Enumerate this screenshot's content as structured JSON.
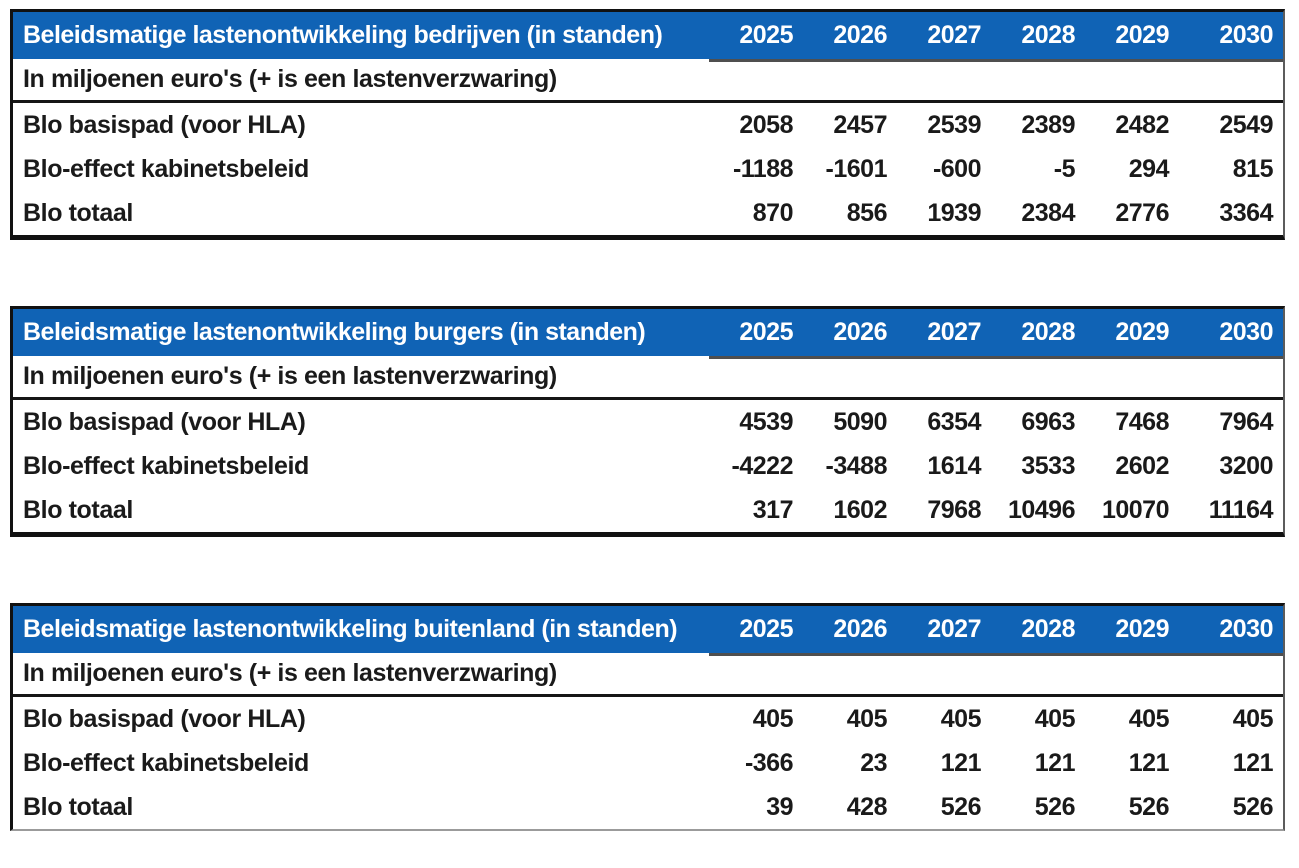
{
  "colors": {
    "header_blue": "#1063b5",
    "header_text": "#ffffff",
    "body_text": "#1a1a1a"
  },
  "subtitle": "In miljoenen euro's (+ is een lastenverzwaring)",
  "years": [
    "2025",
    "2026",
    "2027",
    "2028",
    "2029",
    "2030"
  ],
  "tables": [
    {
      "id": "bedrijven",
      "title": "Beleidsmatige lastenontwikkeling bedrijven (in standen)",
      "rows": [
        {
          "label": "Blo basispad (voor HLA)",
          "values": [
            2058,
            2457,
            2539,
            2389,
            2482,
            2549
          ]
        },
        {
          "label": "Blo-effect kabinetsbeleid",
          "values": [
            -1188,
            -1601,
            -600,
            -5,
            294,
            815
          ]
        },
        {
          "label": "Blo totaal",
          "values": [
            870,
            856,
            1939,
            2384,
            2776,
            3364
          ]
        }
      ]
    },
    {
      "id": "burgers",
      "title": "Beleidsmatige lastenontwikkeling burgers (in standen)",
      "rows": [
        {
          "label": "Blo basispad (voor HLA)",
          "values": [
            4539,
            5090,
            6354,
            6963,
            7468,
            7964
          ]
        },
        {
          "label": "Blo-effect kabinetsbeleid",
          "values": [
            -4222,
            -3488,
            1614,
            3533,
            2602,
            3200
          ]
        },
        {
          "label": "Blo totaal",
          "values": [
            317,
            1602,
            7968,
            10496,
            10070,
            11164
          ]
        }
      ]
    },
    {
      "id": "buitenland",
      "title": "Beleidsmatige lastenontwikkeling buitenland (in standen)",
      "rows": [
        {
          "label": "Blo basispad (voor HLA)",
          "values": [
            405,
            405,
            405,
            405,
            405,
            405
          ]
        },
        {
          "label": "Blo-effect kabinetsbeleid",
          "values": [
            -366,
            23,
            121,
            121,
            121,
            121
          ]
        },
        {
          "label": "Blo totaal",
          "values": [
            39,
            428,
            526,
            526,
            526,
            526
          ]
        }
      ]
    }
  ]
}
